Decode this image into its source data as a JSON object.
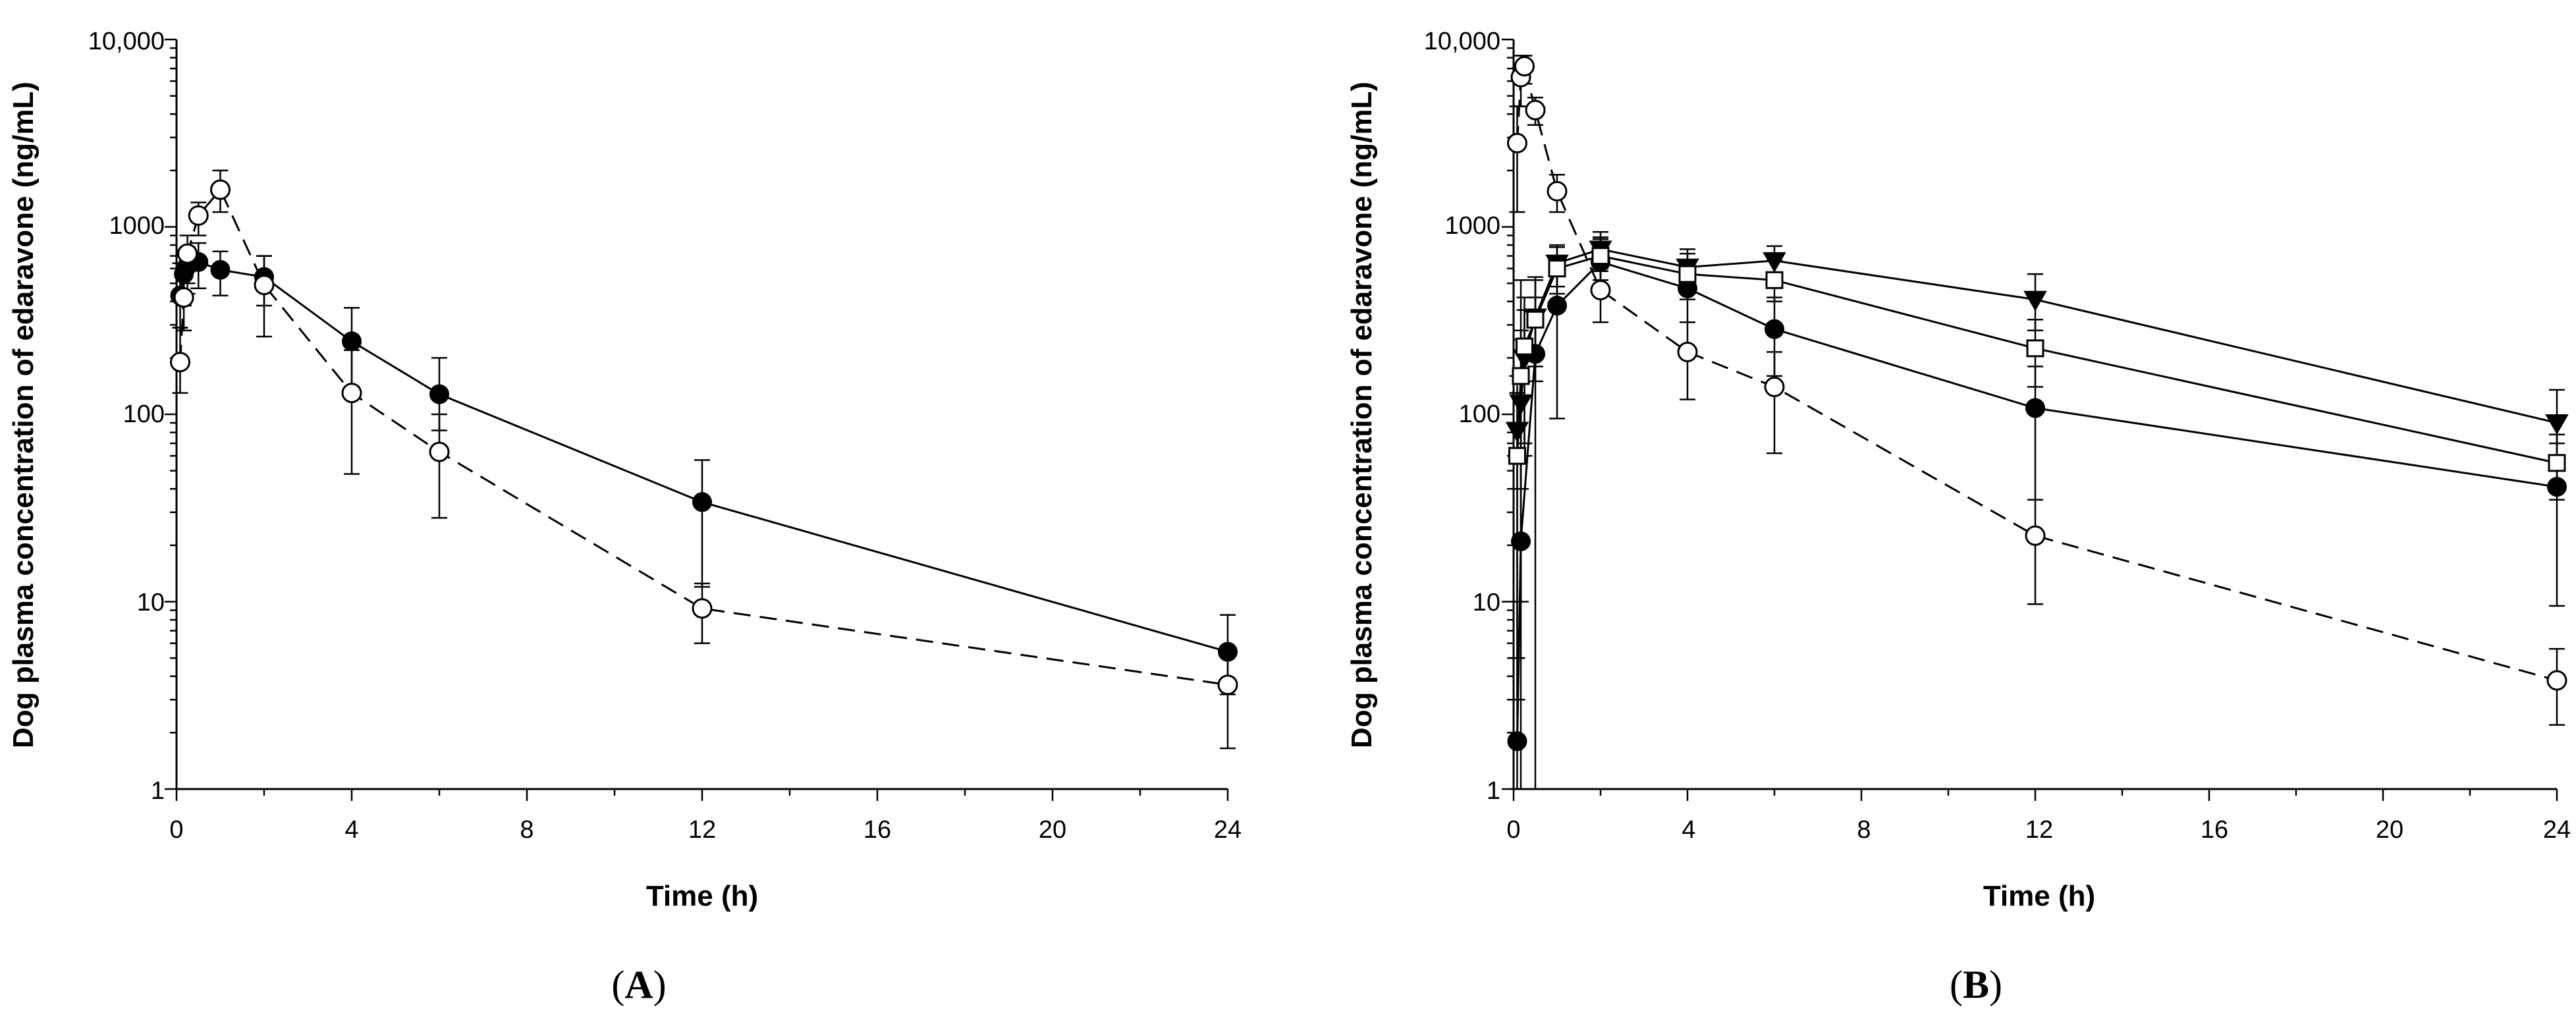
{
  "chart_data": [
    {
      "panel": "A",
      "panel_label": {
        "open": "(",
        "letter": "A",
        "close": ")"
      },
      "type": "line",
      "xlabel": "Time (h)",
      "ylabel": "Dog plasma concentration of edaravone (ng/mL)",
      "xlim": [
        0,
        24
      ],
      "ylim": [
        1,
        10000
      ],
      "yscale": "log",
      "xticks": [
        0,
        4,
        8,
        12,
        16,
        20,
        24
      ],
      "xtick_labels": [
        "0",
        "4",
        "8",
        "12",
        "16",
        "20",
        "24"
      ],
      "yticks": [
        1,
        10,
        100,
        1000,
        10000
      ],
      "ytick_labels": [
        "1",
        "10",
        "100",
        "1000",
        "10,000"
      ],
      "series": [
        {
          "name": "filled-circle",
          "marker": "filled-circle",
          "line": "solid",
          "points": [
            {
              "x": 0.083,
              "y": 430,
              "lo": 290,
              "hi": 640
            },
            {
              "x": 0.167,
              "y": 560,
              "lo": 380,
              "hi": 750
            },
            {
              "x": 0.25,
              "y": 620,
              "lo": 440,
              "hi": 780
            },
            {
              "x": 0.5,
              "y": 650,
              "lo": 470,
              "hi": 820
            },
            {
              "x": 1,
              "y": 590,
              "lo": 430,
              "hi": 740
            },
            {
              "x": 2,
              "y": 540,
              "lo": 380,
              "hi": 700
            },
            {
              "x": 4,
              "y": 245,
              "lo": 140,
              "hi": 370
            },
            {
              "x": 6,
              "y": 128,
              "lo": 82,
              "hi": 200
            },
            {
              "x": 12,
              "y": 34,
              "lo": 12,
              "hi": 57
            },
            {
              "x": 24,
              "y": 5.4,
              "lo": 3.2,
              "hi": 8.5
            }
          ]
        },
        {
          "name": "open-circle",
          "marker": "open-circle",
          "line": "dashed",
          "points": [
            {
              "x": 0.083,
              "y": 190,
              "lo": 130,
              "hi": 290
            },
            {
              "x": 0.167,
              "y": 420,
              "lo": 280,
              "hi": 600
            },
            {
              "x": 0.25,
              "y": 720,
              "lo": 500,
              "hi": 900
            },
            {
              "x": 0.5,
              "y": 1150,
              "lo": 900,
              "hi": 1350
            },
            {
              "x": 1,
              "y": 1580,
              "lo": 1200,
              "hi": 2000
            },
            {
              "x": 2,
              "y": 490,
              "lo": 260,
              "hi": 700
            },
            {
              "x": 4,
              "y": 130,
              "lo": 48,
              "hi": 220
            },
            {
              "x": 6,
              "y": 63,
              "lo": 28,
              "hi": 100
            },
            {
              "x": 12,
              "y": 9.2,
              "lo": 6,
              "hi": 12.5
            },
            {
              "x": 24,
              "y": 3.6,
              "lo": 1.65,
              "hi": 5.4
            }
          ]
        }
      ]
    },
    {
      "panel": "B",
      "panel_label": {
        "open": "(",
        "letter": "B",
        "close": ")"
      },
      "type": "line",
      "xlabel": "Time (h)",
      "ylabel": "Dog plasma concentration of edaravone (ng/mL)",
      "xlim": [
        0,
        24
      ],
      "ylim": [
        1,
        10000
      ],
      "yscale": "log",
      "xticks": [
        0,
        4,
        8,
        12,
        16,
        20,
        24
      ],
      "xtick_labels": [
        "0",
        "4",
        "8",
        "12",
        "16",
        "20",
        "24"
      ],
      "yticks": [
        1,
        10,
        100,
        1000,
        10000
      ],
      "ytick_labels": [
        "1",
        "10",
        "100",
        "1000",
        "10,000"
      ],
      "series": [
        {
          "name": "open-circle",
          "marker": "open-circle",
          "line": "dashed",
          "points": [
            {
              "x": 0.083,
              "y": 2800,
              "lo": 1200,
              "hi": 4400
            },
            {
              "x": 0.167,
              "y": 6300,
              "lo": 4400,
              "hi": 8200
            },
            {
              "x": 0.25,
              "y": 7200,
              "lo": 5800,
              "hi": 8200
            },
            {
              "x": 0.5,
              "y": 4200,
              "lo": 3500,
              "hi": 4900
            },
            {
              "x": 1,
              "y": 1550,
              "lo": 1200,
              "hi": 1900
            },
            {
              "x": 2,
              "y": 460,
              "lo": 310,
              "hi": 600
            },
            {
              "x": 4,
              "y": 215,
              "lo": 120,
              "hi": 310
            },
            {
              "x": 6,
              "y": 140,
              "lo": 62,
              "hi": 215
            },
            {
              "x": 12,
              "y": 22.5,
              "lo": 9.7,
              "hi": 35
            },
            {
              "x": 24,
              "y": 3.8,
              "lo": 2.2,
              "hi": 5.6
            }
          ]
        },
        {
          "name": "filled-circle",
          "marker": "filled-circle",
          "line": "solid",
          "points": [
            {
              "x": 0.083,
              "y": 1.8,
              "lo": 1,
              "hi": 5
            },
            {
              "x": 0.167,
              "y": 21,
              "lo": 1,
              "hi": 520
            },
            {
              "x": 0.5,
              "y": 210,
              "lo": 1,
              "hi": 420
            },
            {
              "x": 1,
              "y": 380,
              "lo": 95,
              "hi": 660
            },
            {
              "x": 2,
              "y": 650,
              "lo": 430,
              "hi": 860
            },
            {
              "x": 4,
              "y": 470,
              "lo": 310,
              "hi": 620
            },
            {
              "x": 6,
              "y": 285,
              "lo": 160,
              "hi": 420
            },
            {
              "x": 12,
              "y": 108,
              "lo": 35,
              "hi": 180
            },
            {
              "x": 24,
              "y": 41,
              "lo": 9.5,
              "hi": 70
            }
          ]
        },
        {
          "name": "filled-triangle",
          "marker": "filled-triangle-down",
          "line": "solid",
          "points": [
            {
              "x": 0.083,
              "y": 82,
              "lo": 3,
              "hi": 160
            },
            {
              "x": 0.167,
              "y": 115,
              "lo": 10,
              "hi": 250
            },
            {
              "x": 0.25,
              "y": 200,
              "lo": 60,
              "hi": 360
            },
            {
              "x": 0.5,
              "y": 330,
              "lo": 180,
              "hi": 540
            },
            {
              "x": 1,
              "y": 640,
              "lo": 480,
              "hi": 800
            },
            {
              "x": 2,
              "y": 760,
              "lo": 580,
              "hi": 940
            },
            {
              "x": 4,
              "y": 610,
              "lo": 470,
              "hi": 760
            },
            {
              "x": 6,
              "y": 660,
              "lo": 540,
              "hi": 790
            },
            {
              "x": 12,
              "y": 410,
              "lo": 280,
              "hi": 560
            },
            {
              "x": 24,
              "y": 90,
              "lo": 50,
              "hi": 135
            }
          ]
        },
        {
          "name": "open-square",
          "marker": "open-square",
          "line": "solid",
          "points": [
            {
              "x": 0.083,
              "y": 60,
              "lo": 5,
              "hi": 130
            },
            {
              "x": 0.167,
              "y": 160,
              "lo": 40,
              "hi": 280
            },
            {
              "x": 0.25,
              "y": 230,
              "lo": 70,
              "hi": 420
            },
            {
              "x": 0.5,
              "y": 320,
              "lo": 150,
              "hi": 520
            },
            {
              "x": 1,
              "y": 600,
              "lo": 440,
              "hi": 780
            },
            {
              "x": 2,
              "y": 700,
              "lo": 520,
              "hi": 880
            },
            {
              "x": 4,
              "y": 560,
              "lo": 410,
              "hi": 720
            },
            {
              "x": 6,
              "y": 520,
              "lo": 400,
              "hi": 660
            },
            {
              "x": 12,
              "y": 225,
              "lo": 140,
              "hi": 320
            },
            {
              "x": 24,
              "y": 55,
              "lo": 35,
              "hi": 78
            }
          ]
        }
      ]
    }
  ]
}
